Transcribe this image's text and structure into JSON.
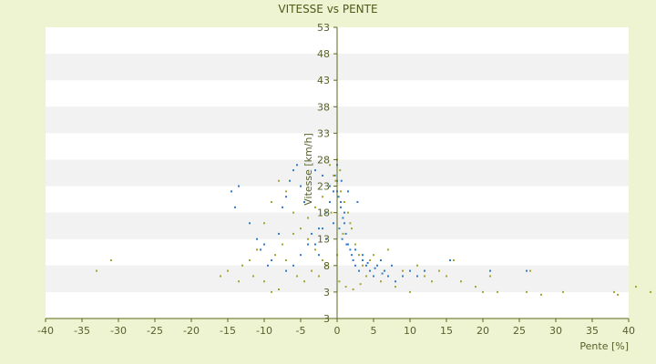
{
  "chart_data": {
    "type": "scatter",
    "title": "VITESSE vs PENTE",
    "xlabel": "Pente [%]",
    "ylabel": "Vitesse [km/h]",
    "xlim": [
      -40,
      40
    ],
    "ylim": [
      -2,
      53
    ],
    "x_ticks": [
      "-40",
      "-35",
      "-30",
      "-25",
      "-20",
      "-15",
      "-10",
      "-5",
      "0",
      "5",
      "10",
      "15",
      "20",
      "25",
      "30",
      "35",
      "40"
    ],
    "y_ticks": [
      "3",
      "3",
      "8",
      "13",
      "18",
      "23",
      "28",
      "33",
      "38",
      "43",
      "48",
      "53"
    ],
    "grid": "horizontal bands",
    "legend": "none",
    "colors": {
      "background": "#eef3d2",
      "plot_band_light": "#ffffff",
      "plot_band_dark": "#f2f2f2",
      "series_a": "#2e7bcf",
      "series_b": "#a5a52e",
      "axis": "#5a6a1e",
      "text": "#55602a"
    },
    "series": [
      {
        "color": "#2e7bcf",
        "points": [
          [
            -14.5,
            22
          ],
          [
            -14,
            19
          ],
          [
            -13.5,
            23
          ],
          [
            -12,
            16
          ],
          [
            -11,
            13
          ],
          [
            -10.5,
            11
          ],
          [
            -9,
            9
          ],
          [
            -8,
            14
          ],
          [
            -7.5,
            19
          ],
          [
            -7,
            21
          ],
          [
            -6.5,
            24
          ],
          [
            -6,
            26
          ],
          [
            -5.5,
            27
          ],
          [
            -5,
            23
          ],
          [
            -4.5,
            20
          ],
          [
            -4,
            17
          ],
          [
            -3.5,
            14
          ],
          [
            -3,
            12
          ],
          [
            -2.5,
            10
          ],
          [
            -2,
            15
          ],
          [
            -1.5,
            18
          ],
          [
            -1,
            20
          ],
          [
            -0.5,
            22
          ],
          [
            0,
            24
          ],
          [
            0.2,
            21
          ],
          [
            0.5,
            19
          ],
          [
            0.8,
            17
          ],
          [
            1,
            16
          ],
          [
            1.2,
            14
          ],
          [
            1.5,
            12
          ],
          [
            1.8,
            11
          ],
          [
            2,
            10
          ],
          [
            2.2,
            9
          ],
          [
            2.5,
            8
          ],
          [
            3,
            7
          ],
          [
            3.5,
            9
          ],
          [
            4,
            8
          ],
          [
            4.5,
            7
          ],
          [
            5,
            6
          ],
          [
            5.5,
            8
          ],
          [
            6,
            9
          ],
          [
            6.5,
            7
          ],
          [
            7,
            6
          ],
          [
            8,
            5
          ],
          [
            9,
            6
          ],
          [
            10,
            7
          ],
          [
            11,
            6
          ],
          [
            12,
            7
          ],
          [
            15.5,
            9
          ],
          [
            21,
            7
          ],
          [
            26,
            7
          ],
          [
            -3,
            26
          ],
          [
            -2,
            25
          ],
          [
            -1,
            23
          ],
          [
            0,
            22
          ],
          [
            0.5,
            20
          ],
          [
            1,
            18
          ],
          [
            -0.5,
            16
          ],
          [
            0.3,
            15
          ],
          [
            0.7,
            13
          ],
          [
            1.3,
            12
          ],
          [
            2.5,
            11
          ],
          [
            3.5,
            10
          ],
          [
            4.2,
            8.5
          ],
          [
            5.2,
            7.5
          ],
          [
            6.2,
            6.5
          ],
          [
            7.5,
            8
          ],
          [
            -1.5,
            13
          ],
          [
            -2.5,
            15
          ],
          [
            -4,
            12
          ],
          [
            -5,
            10
          ],
          [
            -6,
            8
          ],
          [
            -7,
            7
          ],
          [
            -9.5,
            8
          ],
          [
            -10,
            12
          ],
          [
            0,
            27
          ],
          [
            -0.3,
            25
          ],
          [
            0.6,
            24
          ],
          [
            1.5,
            22
          ],
          [
            2.8,
            20
          ]
        ]
      },
      {
        "color": "#a5a52e",
        "points": [
          [
            -33,
            7
          ],
          [
            -31,
            9
          ],
          [
            -16,
            6
          ],
          [
            -15,
            7
          ],
          [
            -13,
            8
          ],
          [
            -12,
            9
          ],
          [
            -11,
            11
          ],
          [
            -10,
            16
          ],
          [
            -9,
            20
          ],
          [
            -8,
            24
          ],
          [
            -7,
            22
          ],
          [
            -6,
            18
          ],
          [
            -5,
            15
          ],
          [
            -4,
            13
          ],
          [
            -3,
            11
          ],
          [
            -2,
            9
          ],
          [
            -1,
            27
          ],
          [
            -0.5,
            25
          ],
          [
            0,
            28
          ],
          [
            0.5,
            22
          ],
          [
            1,
            20
          ],
          [
            1.5,
            18
          ],
          [
            2,
            15
          ],
          [
            2.5,
            12
          ],
          [
            3,
            10
          ],
          [
            3.5,
            8
          ],
          [
            4,
            6
          ],
          [
            5,
            10
          ],
          [
            6,
            5
          ],
          [
            7,
            11
          ],
          [
            8,
            4
          ],
          [
            9,
            7
          ],
          [
            10,
            3
          ],
          [
            11,
            8
          ],
          [
            12,
            6
          ],
          [
            13,
            5
          ],
          [
            14,
            7
          ],
          [
            15,
            6
          ],
          [
            16,
            9
          ],
          [
            17,
            5
          ],
          [
            19,
            4
          ],
          [
            20,
            3
          ],
          [
            21,
            6
          ],
          [
            22,
            3
          ],
          [
            26,
            3
          ],
          [
            26.5,
            7
          ],
          [
            28,
            2.5
          ],
          [
            31,
            3
          ],
          [
            38,
            3
          ],
          [
            38.5,
            2.5
          ],
          [
            41,
            4
          ],
          [
            43,
            3
          ],
          [
            -9,
            3
          ],
          [
            -8,
            3.5
          ],
          [
            -10,
            5
          ],
          [
            -7,
            9
          ],
          [
            -5.5,
            6
          ],
          [
            -4.5,
            5
          ],
          [
            -3.5,
            7
          ],
          [
            -2.5,
            6
          ],
          [
            -1.5,
            8
          ],
          [
            0.3,
            5
          ],
          [
            1.2,
            4
          ],
          [
            2.2,
            3.5
          ],
          [
            3.2,
            4.5
          ],
          [
            -0.8,
            18
          ],
          [
            0.8,
            14
          ],
          [
            1.8,
            16
          ],
          [
            -2,
            21
          ],
          [
            -3,
            19
          ],
          [
            -4,
            17
          ],
          [
            -6,
            14
          ],
          [
            -7.5,
            12
          ],
          [
            -8.5,
            10
          ],
          [
            -11.5,
            6
          ],
          [
            -13.5,
            5
          ],
          [
            0,
            10
          ],
          [
            0.4,
            26
          ],
          [
            -0.2,
            24
          ],
          [
            4.5,
            9
          ]
        ]
      }
    ]
  }
}
